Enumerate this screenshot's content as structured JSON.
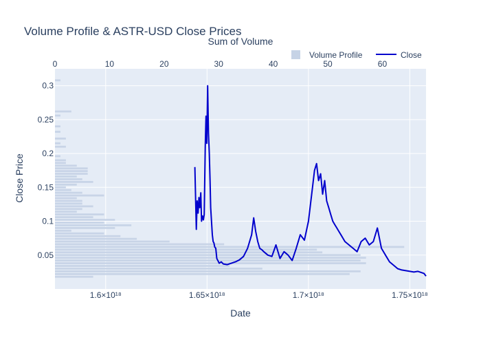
{
  "chart_data": {
    "type": "line",
    "title": "Volume Profile & ASTR-USD Close Prices",
    "xlabel": "Date",
    "ylabel": "Close Price",
    "x2label": "Sum of Volume",
    "xlim": [
      1.575e+18,
      1.758e+18
    ],
    "ylim": [
      0.0,
      0.325
    ],
    "x2lim": [
      0,
      68
    ],
    "xticks": [
      {
        "value": 1.6e+18,
        "label": "1.6×10¹⁸"
      },
      {
        "value": 1.65e+18,
        "label": "1.65×10¹⁸"
      },
      {
        "value": 1.7e+18,
        "label": "1.7×10¹⁸"
      },
      {
        "value": 1.75e+18,
        "label": "1.75×10¹⁸"
      }
    ],
    "yticks": [
      {
        "value": 0.05,
        "label": "0.05"
      },
      {
        "value": 0.1,
        "label": "0.1"
      },
      {
        "value": 0.15,
        "label": "0.15"
      },
      {
        "value": 0.2,
        "label": "0.2"
      },
      {
        "value": 0.25,
        "label": "0.25"
      },
      {
        "value": 0.3,
        "label": "0.3"
      }
    ],
    "x2ticks": [
      {
        "value": 0,
        "label": "0"
      },
      {
        "value": 10,
        "label": "10"
      },
      {
        "value": 20,
        "label": "20"
      },
      {
        "value": 30,
        "label": "30"
      },
      {
        "value": 40,
        "label": "40"
      },
      {
        "value": 50,
        "label": "50"
      },
      {
        "value": 60,
        "label": "60"
      }
    ],
    "grid": true,
    "legend_position": "top-right",
    "series": [
      {
        "name": "Volume Profile",
        "type": "horizontal-bar",
        "color": "#c6d3e6",
        "bins": [
          {
            "price": 0.018,
            "volume": 7
          },
          {
            "price": 0.022,
            "volume": 54
          },
          {
            "price": 0.026,
            "volume": 56
          },
          {
            "price": 0.03,
            "volume": 38
          },
          {
            "price": 0.034,
            "volume": 32
          },
          {
            "price": 0.038,
            "volume": 57
          },
          {
            "price": 0.042,
            "volume": 56
          },
          {
            "price": 0.046,
            "volume": 57
          },
          {
            "price": 0.05,
            "volume": 56
          },
          {
            "price": 0.054,
            "volume": 49
          },
          {
            "price": 0.058,
            "volume": 48
          },
          {
            "price": 0.062,
            "volume": 64
          },
          {
            "price": 0.066,
            "volume": 31
          },
          {
            "price": 0.07,
            "volume": 21
          },
          {
            "price": 0.074,
            "volume": 15
          },
          {
            "price": 0.078,
            "volume": 12
          },
          {
            "price": 0.082,
            "volume": 9
          },
          {
            "price": 0.086,
            "volume": 3
          },
          {
            "price": 0.09,
            "volume": 11
          },
          {
            "price": 0.094,
            "volume": 14
          },
          {
            "price": 0.098,
            "volume": 9
          },
          {
            "price": 0.102,
            "volume": 11
          },
          {
            "price": 0.106,
            "volume": 7
          },
          {
            "price": 0.11,
            "volume": 9
          },
          {
            "price": 0.114,
            "volume": 4
          },
          {
            "price": 0.118,
            "volume": 5
          },
          {
            "price": 0.122,
            "volume": 7
          },
          {
            "price": 0.126,
            "volume": 5
          },
          {
            "price": 0.13,
            "volume": 5
          },
          {
            "price": 0.134,
            "volume": 4
          },
          {
            "price": 0.138,
            "volume": 9
          },
          {
            "price": 0.142,
            "volume": 5
          },
          {
            "price": 0.146,
            "volume": 3
          },
          {
            "price": 0.15,
            "volume": 2
          },
          {
            "price": 0.154,
            "volume": 4
          },
          {
            "price": 0.158,
            "volume": 7
          },
          {
            "price": 0.162,
            "volume": 5
          },
          {
            "price": 0.166,
            "volume": 4
          },
          {
            "price": 0.17,
            "volume": 6
          },
          {
            "price": 0.174,
            "volume": 6
          },
          {
            "price": 0.178,
            "volume": 6
          },
          {
            "price": 0.182,
            "volume": 4
          },
          {
            "price": 0.186,
            "volume": 2
          },
          {
            "price": 0.19,
            "volume": 2
          },
          {
            "price": 0.196,
            "volume": 1
          },
          {
            "price": 0.21,
            "volume": 2
          },
          {
            "price": 0.215,
            "volume": 1
          },
          {
            "price": 0.222,
            "volume": 2
          },
          {
            "price": 0.232,
            "volume": 1
          },
          {
            "price": 0.24,
            "volume": 1
          },
          {
            "price": 0.256,
            "volume": 1
          },
          {
            "price": 0.262,
            "volume": 3
          },
          {
            "price": 0.308,
            "volume": 1
          }
        ]
      },
      {
        "name": "Close",
        "type": "line",
        "color": "#0000cc",
        "x": [
          1.644e+18,
          1.6447e+18,
          1.6451e+18,
          1.6456e+18,
          1.646e+18,
          1.6464e+18,
          1.6469e+18,
          1.6473e+18,
          1.6477e+18,
          1.6482e+18,
          1.6486e+18,
          1.6491e+18,
          1.6495e+18,
          1.6499e+18,
          1.6503e+18,
          1.6507e+18,
          1.6511e+18,
          1.6515e+18,
          1.6518e+18,
          1.6522e+18,
          1.6526e+18,
          1.653e+18,
          1.6534e+18,
          1.6538e+18,
          1.6543e+18,
          1.6548e+18,
          1.6553e+18,
          1.656e+18,
          1.657e+18,
          1.658e+18,
          1.66e+18,
          1.662e+18,
          1.664e+18,
          1.666e+18,
          1.668e+18,
          1.67e+18,
          1.672e+18,
          1.673e+18,
          1.674e+18,
          1.675e+18,
          1.676e+18,
          1.677e+18,
          1.678e+18,
          1.68e+18,
          1.682e+18,
          1.684e+18,
          1.686e+18,
          1.688e+18,
          1.69e+18,
          1.692e+18,
          1.694e+18,
          1.696e+18,
          1.698e+18,
          1.7e+18,
          1.702e+18,
          1.703e+18,
          1.704e+18,
          1.705e+18,
          1.706e+18,
          1.707e+18,
          1.708e+18,
          1.709e+18,
          1.71e+18,
          1.711e+18,
          1.712e+18,
          1.713e+18,
          1.714e+18,
          1.715e+18,
          1.716e+18,
          1.718e+18,
          1.72e+18,
          1.722e+18,
          1.724e+18,
          1.726e+18,
          1.728e+18,
          1.73e+18,
          1.732e+18,
          1.734e+18,
          1.736e+18,
          1.737e+18,
          1.738e+18,
          1.74e+18,
          1.742e+18,
          1.744e+18,
          1.746e+18,
          1.748e+18,
          1.75e+18,
          1.752e+18,
          1.754e+18,
          1.756e+18,
          1.757e+18,
          1.758e+18
        ],
        "y": [
          0.18,
          0.088,
          0.13,
          0.112,
          0.135,
          0.12,
          0.142,
          0.1,
          0.108,
          0.102,
          0.11,
          0.21,
          0.255,
          0.215,
          0.3,
          0.23,
          0.2,
          0.16,
          0.12,
          0.1,
          0.08,
          0.07,
          0.068,
          0.062,
          0.06,
          0.045,
          0.042,
          0.038,
          0.04,
          0.037,
          0.036,
          0.038,
          0.04,
          0.043,
          0.048,
          0.06,
          0.08,
          0.105,
          0.085,
          0.07,
          0.06,
          0.058,
          0.055,
          0.05,
          0.048,
          0.065,
          0.045,
          0.055,
          0.05,
          0.042,
          0.06,
          0.08,
          0.072,
          0.1,
          0.15,
          0.175,
          0.185,
          0.16,
          0.17,
          0.14,
          0.16,
          0.13,
          0.12,
          0.11,
          0.1,
          0.095,
          0.09,
          0.085,
          0.08,
          0.07,
          0.065,
          0.06,
          0.055,
          0.07,
          0.075,
          0.065,
          0.07,
          0.09,
          0.06,
          0.055,
          0.05,
          0.04,
          0.035,
          0.03,
          0.028,
          0.027,
          0.026,
          0.025,
          0.026,
          0.024,
          0.023,
          0.019
        ]
      }
    ]
  }
}
